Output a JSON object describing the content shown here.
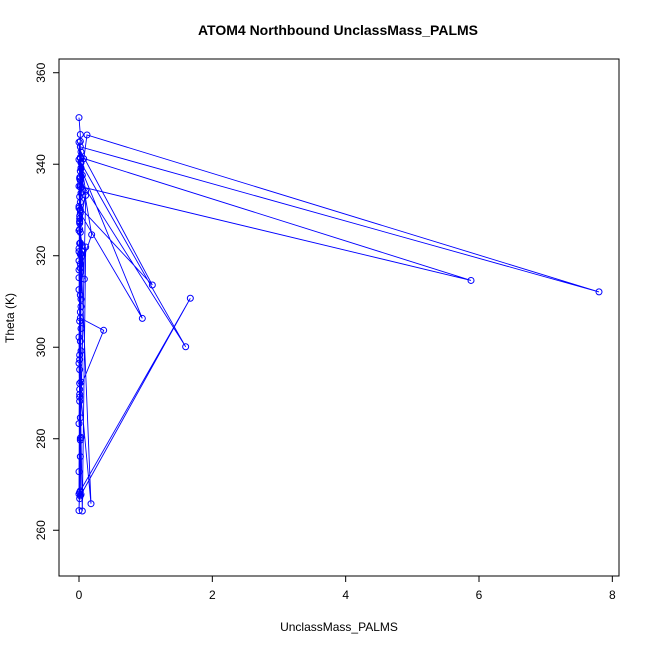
{
  "chart_data": {
    "type": "line",
    "title": "ATOM4 Northbound UnclassMass_PALMS",
    "xlabel": "UnclassMass_PALMS",
    "ylabel": "Theta (K)",
    "xlim": [
      -0.3,
      8.1
    ],
    "ylim": [
      250,
      363
    ],
    "x_ticks": [
      0,
      2,
      4,
      6,
      8
    ],
    "y_ticks": [
      260,
      280,
      300,
      320,
      340,
      360
    ],
    "grid": false,
    "legend": "none",
    "markers": "open-circle",
    "series": [
      {
        "color": "#0000ff",
        "x": [
          0.0,
          0.02,
          0.01,
          0.03,
          0.02,
          0.0,
          0.01,
          0.02,
          0.01,
          0.0,
          0.02,
          0.03,
          0.01,
          0.0,
          0.02,
          0.05,
          0.03,
          0.01,
          0.02,
          0.0,
          0.01,
          0.03,
          0.02,
          0.0,
          0.18,
          0.01,
          0.02,
          0.0,
          0.03,
          0.02,
          0.1,
          0.01,
          0.0,
          0.02,
          0.37,
          0.01,
          0.03,
          0.0,
          0.02,
          0.08,
          0.01,
          0.02,
          0.0,
          0.03,
          0.02,
          0.01,
          0.0,
          0.02,
          0.12,
          7.8,
          0.02,
          0.03,
          0.01,
          0.0,
          5.88,
          0.02,
          0.01,
          0.0,
          0.19,
          0.02,
          0.03,
          0.01,
          0.0,
          0.02,
          0.1,
          0.01,
          0.02,
          0.0,
          1.1,
          0.03,
          0.02,
          0.01,
          0.0,
          0.02,
          0.01,
          0.07,
          0.02,
          1.6,
          0.03,
          0.05,
          0.02,
          0.01,
          0.0,
          0.02,
          0.95,
          0.03,
          0.02,
          0.01,
          0.05,
          0.1,
          0.02,
          0.0,
          0.01,
          0.03,
          0.02,
          0.03,
          1.67,
          0.02,
          0.01,
          0.0,
          0.02
        ],
        "y": [
          350.2,
          346.5,
          336.8,
          320.4,
          301.3,
          296.5,
          288.2,
          276.1,
          268.3,
          264.3,
          280.1,
          292.4,
          305.7,
          316.9,
          325.1,
          322.2,
          310.5,
          298.3,
          284.6,
          272.8,
          289.7,
          304.1,
          318.2,
          330.4,
          265.8,
          292.1,
          307.7,
          321.6,
          333.7,
          341.3,
          334.1,
          325.8,
          315.2,
          306.4,
          303.7,
          290.8,
          299.2,
          312.6,
          322.8,
          314.9,
          327.4,
          337.2,
          344.8,
          340.5,
          330.1,
          328.7,
          320.9,
          335.4,
          346.4,
          312.1,
          343.8,
          339.2,
          327.6,
          335.2,
          314.6,
          341.5,
          337.1,
          341.0,
          324.6,
          317.3,
          308.9,
          295.1,
          283.3,
          279.7,
          333.2,
          327.1,
          320.3,
          330.8,
          313.6,
          342.7,
          338.5,
          332.9,
          325.5,
          345.0,
          328.1,
          341.2,
          336.4,
          300.1,
          340.3,
          337.6,
          329.9,
          322.7,
          318.9,
          329.3,
          306.3,
          339.1,
          331.7,
          297.3,
          264.2,
          321.9,
          311.4,
          302.2,
          289.1,
          280.3,
          267.5,
          267.8,
          310.7,
          268.6,
          266.9,
          267.9,
          335.0
        ]
      }
    ]
  }
}
